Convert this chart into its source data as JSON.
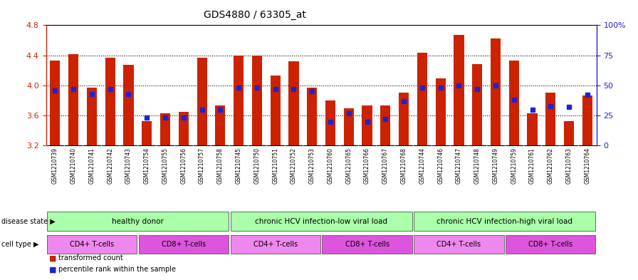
{
  "title": "GDS4880 / 63305_at",
  "samples": [
    "GSM1210739",
    "GSM1210740",
    "GSM1210741",
    "GSM1210742",
    "GSM1210743",
    "GSM1210754",
    "GSM1210755",
    "GSM1210756",
    "GSM1210757",
    "GSM1210758",
    "GSM1210745",
    "GSM1210750",
    "GSM1210751",
    "GSM1210752",
    "GSM1210753",
    "GSM1210760",
    "GSM1210765",
    "GSM1210766",
    "GSM1210767",
    "GSM1210768",
    "GSM1210744",
    "GSM1210746",
    "GSM1210747",
    "GSM1210748",
    "GSM1210749",
    "GSM1210759",
    "GSM1210761",
    "GSM1210762",
    "GSM1210763",
    "GSM1210764"
  ],
  "bar_values": [
    4.33,
    4.42,
    3.97,
    4.37,
    4.27,
    3.53,
    3.63,
    3.65,
    4.37,
    3.73,
    4.4,
    4.4,
    4.13,
    4.32,
    3.97,
    3.8,
    3.7,
    3.73,
    3.73,
    3.9,
    4.43,
    4.09,
    4.67,
    4.28,
    4.62,
    4.33,
    3.63,
    3.9,
    3.53,
    3.87
  ],
  "percentile_values": [
    46,
    47,
    43,
    47,
    43,
    23,
    23,
    23,
    30,
    30,
    48,
    48,
    47,
    47,
    45,
    20,
    27,
    20,
    22,
    37,
    48,
    48,
    50,
    47,
    50,
    38,
    30,
    33,
    32,
    42
  ],
  "y_min": 3.2,
  "y_max": 4.8,
  "y_ticks": [
    3.2,
    3.6,
    4.0,
    4.4,
    4.8
  ],
  "right_y_ticks": [
    0,
    25,
    50,
    75,
    100
  ],
  "bar_color": "#cc2200",
  "dot_color": "#2222cc",
  "disease_color": "#aaffaa",
  "cd4_color": "#ee88ee",
  "cd8_color": "#dd55dd",
  "sample_bg_color": "#cccccc",
  "disease_groups": [
    {
      "label": "healthy donor",
      "start": 0,
      "end": 10
    },
    {
      "label": "chronic HCV infection-low viral load",
      "start": 10,
      "end": 20
    },
    {
      "label": "chronic HCV infection-high viral load",
      "start": 20,
      "end": 30
    }
  ],
  "cell_groups": [
    {
      "label": "CD4+ T-cells",
      "start": 0,
      "end": 5,
      "type": "CD4"
    },
    {
      "label": "CD8+ T-cells",
      "start": 5,
      "end": 10,
      "type": "CD8"
    },
    {
      "label": "CD4+ T-cells",
      "start": 10,
      "end": 15,
      "type": "CD4"
    },
    {
      "label": "CD8+ T-cells",
      "start": 15,
      "end": 20,
      "type": "CD8"
    },
    {
      "label": "CD4+ T-cells",
      "start": 20,
      "end": 25,
      "type": "CD4"
    },
    {
      "label": "CD8+ T-cells",
      "start": 25,
      "end": 30,
      "type": "CD8"
    }
  ]
}
